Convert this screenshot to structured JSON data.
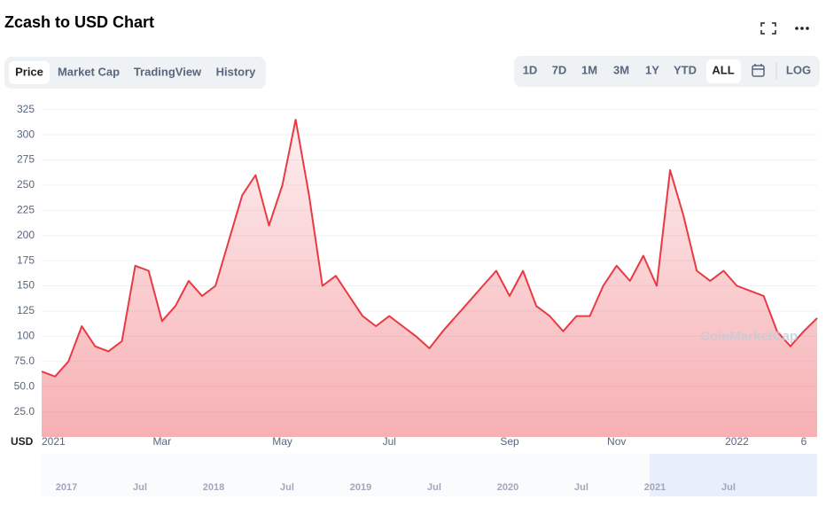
{
  "ui": {
    "tabs": [
      "Price",
      "Market Cap",
      "TradingView",
      "History"
    ],
    "ranges": [
      "1D",
      "7D",
      "1M",
      "3M",
      "1Y",
      "YTD",
      "ALL"
    ],
    "log_button": "LOG",
    "watermark": "CoinMarketCap",
    "navigator_labels": [
      "2017",
      "Jul",
      "2018",
      "Jul",
      "2019",
      "Jul",
      "2020",
      "Jul",
      "2021",
      "Jul"
    ]
  },
  "chart_data": {
    "type": "area",
    "title": "Zcash to USD Chart",
    "y_label": "USD",
    "categories": [
      "2021",
      null,
      null,
      null,
      null,
      null,
      null,
      null,
      null,
      "Mar",
      null,
      null,
      null,
      null,
      null,
      null,
      null,
      null,
      "May",
      null,
      null,
      null,
      null,
      null,
      null,
      null,
      "Jul",
      null,
      null,
      null,
      null,
      null,
      null,
      null,
      null,
      "Sep",
      null,
      null,
      null,
      null,
      null,
      null,
      null,
      "Nov",
      null,
      null,
      null,
      null,
      null,
      null,
      null,
      null,
      "2022",
      null,
      null,
      null,
      null,
      "6",
      null
    ],
    "values": [
      65,
      60,
      75,
      110,
      90,
      85,
      95,
      170,
      165,
      115,
      130,
      155,
      140,
      150,
      195,
      240,
      260,
      210,
      250,
      315,
      240,
      150,
      160,
      140,
      120,
      110,
      120,
      110,
      100,
      88,
      105,
      120,
      135,
      150,
      165,
      140,
      165,
      130,
      120,
      105,
      120,
      120,
      150,
      170,
      155,
      180,
      150,
      265,
      220,
      165,
      155,
      165,
      150,
      145,
      140,
      105,
      90,
      105,
      118
    ],
    "color": "#ea3943",
    "ylim": [
      0,
      330
    ],
    "yticks": [
      {
        "value": 25,
        "label": "25.0"
      },
      {
        "value": 50,
        "label": "50.0"
      },
      {
        "value": 75,
        "label": "75.0"
      },
      100,
      125,
      150,
      175,
      200,
      225,
      250,
      275,
      300,
      325
    ],
    "grid": true
  }
}
